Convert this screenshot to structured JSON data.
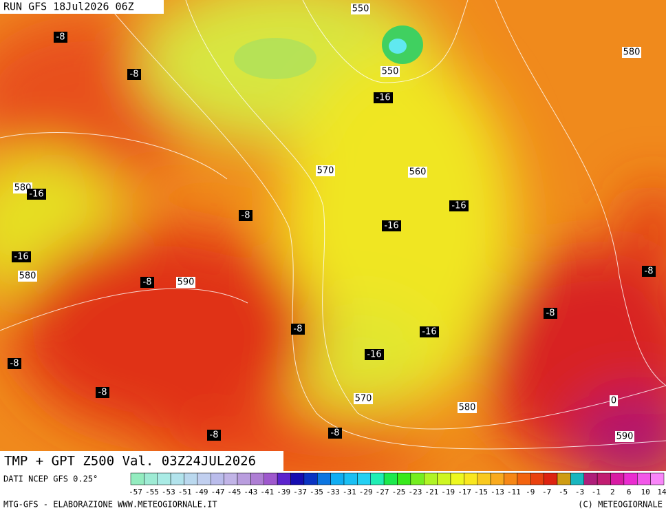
{
  "header": {
    "run": "RUN GFS 18Jul2026 06Z"
  },
  "map": {
    "labels": [
      "550",
      "-8",
      "-8",
      "550",
      "-16",
      "580",
      "570",
      "560",
      "580",
      "-16",
      "-16",
      "-8",
      "-16",
      "-16",
      "580",
      "-8",
      "590",
      "-8",
      "-8",
      "-8",
      "-16",
      "-8",
      "-16",
      "-8",
      "570",
      "580",
      "0",
      "-8",
      "-8",
      "590"
    ]
  },
  "title": "TMP + GPT Z500 Val. 03Z24JUL2026",
  "legend": {
    "source": "DATI NCEP GFS 0.25°",
    "values": [
      -57,
      -55,
      -53,
      -51,
      -49,
      -47,
      -45,
      -43,
      -41,
      -39,
      -37,
      -35,
      -33,
      -31,
      -29,
      -27,
      -25,
      -23,
      -21,
      -19,
      -17,
      -15,
      -13,
      -11,
      -9,
      -7,
      -5,
      -3,
      -1,
      2,
      6,
      10,
      14
    ]
  },
  "footer": {
    "left": "MTG-GFS - ELABORAZIONE WWW.METEOGIORNALE.IT",
    "right": "(C) METEOGIORNALE"
  }
}
